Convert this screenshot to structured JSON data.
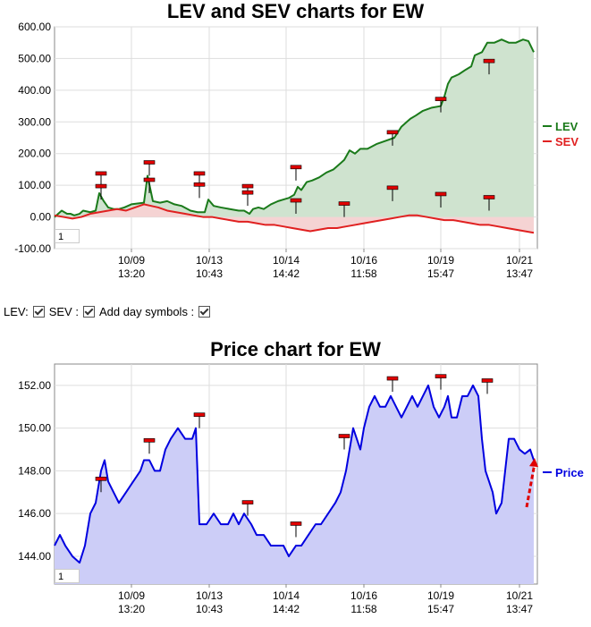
{
  "chart_data": [
    {
      "type": "line",
      "title": "LEV and SEV charts for EW",
      "x_ticks": [
        {
          "date": "10/09",
          "time": "13:20"
        },
        {
          "date": "10/13",
          "time": "10:43"
        },
        {
          "date": "10/14",
          "time": "14:42"
        },
        {
          "date": "10/16",
          "time": "11:58"
        },
        {
          "date": "10/19",
          "time": "15:47"
        },
        {
          "date": "10/21",
          "time": "13:47"
        }
      ],
      "y_ticks": [
        "600.00",
        "500.00",
        "400.00",
        "300.00",
        "200.00",
        "100.00",
        "0.00",
        "-100.00"
      ],
      "ylim": [
        -100,
        600
      ],
      "grid": true,
      "legend_position": "right",
      "series": [
        {
          "name": "LEV",
          "color": "#1a7a1a",
          "fill": "#cfe3cf",
          "points": [
            [
              0,
              0
            ],
            [
              8,
              20
            ],
            [
              14,
              10
            ],
            [
              18,
              10
            ],
            [
              22,
              5
            ],
            [
              28,
              10
            ],
            [
              32,
              20
            ],
            [
              40,
              15
            ],
            [
              46,
              20
            ],
            [
              50,
              75
            ],
            [
              55,
              50
            ],
            [
              60,
              30
            ],
            [
              66,
              25
            ],
            [
              72,
              25
            ],
            [
              78,
              30
            ],
            [
              86,
              40
            ],
            [
              100,
              45
            ],
            [
              104,
              130
            ],
            [
              110,
              50
            ],
            [
              118,
              45
            ],
            [
              126,
              50
            ],
            [
              134,
              40
            ],
            [
              142,
              35
            ],
            [
              152,
              20
            ],
            [
              160,
              15
            ],
            [
              168,
              15
            ],
            [
              172,
              55
            ],
            [
              178,
              35
            ],
            [
              186,
              30
            ],
            [
              196,
              25
            ],
            [
              206,
              20
            ],
            [
              212,
              20
            ],
            [
              218,
              10
            ],
            [
              222,
              25
            ],
            [
              228,
              30
            ],
            [
              234,
              25
            ],
            [
              242,
              40
            ],
            [
              250,
              50
            ],
            [
              256,
              55
            ],
            [
              262,
              60
            ],
            [
              268,
              70
            ],
            [
              272,
              95
            ],
            [
              276,
              85
            ],
            [
              282,
              110
            ],
            [
              288,
              115
            ],
            [
              296,
              125
            ],
            [
              304,
              140
            ],
            [
              312,
              150
            ],
            [
              320,
              170
            ],
            [
              324,
              180
            ],
            [
              330,
              210
            ],
            [
              336,
              200
            ],
            [
              342,
              215
            ],
            [
              350,
              215
            ],
            [
              360,
              230
            ],
            [
              370,
              240
            ],
            [
              380,
              250
            ],
            [
              388,
              285
            ],
            [
              394,
              300
            ],
            [
              398,
              310
            ],
            [
              404,
              320
            ],
            [
              412,
              335
            ],
            [
              422,
              345
            ],
            [
              432,
              350
            ],
            [
              436,
              380
            ],
            [
              440,
              420
            ],
            [
              444,
              440
            ],
            [
              452,
              450
            ],
            [
              460,
              465
            ],
            [
              466,
              475
            ],
            [
              470,
              510
            ],
            [
              478,
              520
            ],
            [
              484,
              550
            ],
            [
              492,
              550
            ],
            [
              500,
              560
            ],
            [
              508,
              550
            ],
            [
              516,
              550
            ],
            [
              524,
              560
            ],
            [
              530,
              555
            ],
            [
              536,
              520
            ]
          ]
        },
        {
          "name": "SEV",
          "color": "#e02020",
          "fill": "#f5d3d3",
          "points": [
            [
              0,
              5
            ],
            [
              10,
              0
            ],
            [
              20,
              -5
            ],
            [
              30,
              0
            ],
            [
              40,
              10
            ],
            [
              50,
              15
            ],
            [
              60,
              20
            ],
            [
              70,
              25
            ],
            [
              80,
              20
            ],
            [
              90,
              30
            ],
            [
              100,
              40
            ],
            [
              108,
              35
            ],
            [
              116,
              30
            ],
            [
              126,
              20
            ],
            [
              136,
              15
            ],
            [
              146,
              10
            ],
            [
              156,
              5
            ],
            [
              166,
              0
            ],
            [
              176,
              0
            ],
            [
              186,
              -5
            ],
            [
              196,
              -10
            ],
            [
              206,
              -15
            ],
            [
              216,
              -15
            ],
            [
              226,
              -20
            ],
            [
              236,
              -25
            ],
            [
              246,
              -25
            ],
            [
              256,
              -30
            ],
            [
              266,
              -35
            ],
            [
              276,
              -40
            ],
            [
              286,
              -45
            ],
            [
              296,
              -40
            ],
            [
              306,
              -35
            ],
            [
              316,
              -35
            ],
            [
              326,
              -30
            ],
            [
              336,
              -25
            ],
            [
              346,
              -20
            ],
            [
              356,
              -15
            ],
            [
              366,
              -10
            ],
            [
              376,
              -5
            ],
            [
              386,
              0
            ],
            [
              396,
              5
            ],
            [
              406,
              5
            ],
            [
              416,
              0
            ],
            [
              426,
              -5
            ],
            [
              436,
              -10
            ],
            [
              446,
              -10
            ],
            [
              456,
              -15
            ],
            [
              466,
              -20
            ],
            [
              476,
              -25
            ],
            [
              486,
              -25
            ],
            [
              496,
              -30
            ],
            [
              506,
              -35
            ],
            [
              516,
              -40
            ],
            [
              526,
              -45
            ],
            [
              536,
              -50
            ]
          ]
        }
      ]
    },
    {
      "type": "line",
      "title": "Price chart for EW",
      "x_ticks": [
        {
          "date": "10/09",
          "time": "13:20"
        },
        {
          "date": "10/13",
          "time": "10:43"
        },
        {
          "date": "10/14",
          "time": "14:42"
        },
        {
          "date": "10/16",
          "time": "11:58"
        },
        {
          "date": "10/19",
          "time": "15:47"
        },
        {
          "date": "10/21",
          "time": "13:47"
        }
      ],
      "y_ticks": [
        "152.00",
        "150.00",
        "148.00",
        "146.00",
        "144.00"
      ],
      "ylim": [
        142.7,
        153.0
      ],
      "grid": true,
      "legend_position": "right",
      "series": [
        {
          "name": "Price",
          "color": "#0000e0",
          "fill": "#cccdf7",
          "points": [
            [
              0,
              144.5
            ],
            [
              6,
              145.0
            ],
            [
              12,
              144.5
            ],
            [
              20,
              144.0
            ],
            [
              28,
              143.7
            ],
            [
              34,
              144.5
            ],
            [
              40,
              146.0
            ],
            [
              46,
              146.5
            ],
            [
              52,
              148.0
            ],
            [
              56,
              148.5
            ],
            [
              60,
              147.5
            ],
            [
              66,
              147.0
            ],
            [
              72,
              146.5
            ],
            [
              80,
              147.0
            ],
            [
              88,
              147.5
            ],
            [
              96,
              148.0
            ],
            [
              100,
              148.5
            ],
            [
              106,
              148.5
            ],
            [
              112,
              148.0
            ],
            [
              118,
              148.0
            ],
            [
              124,
              149.0
            ],
            [
              130,
              149.5
            ],
            [
              138,
              150.0
            ],
            [
              146,
              149.5
            ],
            [
              154,
              149.5
            ],
            [
              158,
              150.0
            ],
            [
              162,
              145.5
            ],
            [
              170,
              145.5
            ],
            [
              178,
              146.0
            ],
            [
              186,
              145.5
            ],
            [
              194,
              145.5
            ],
            [
              200,
              146.0
            ],
            [
              206,
              145.5
            ],
            [
              212,
              146.0
            ],
            [
              220,
              145.5
            ],
            [
              226,
              145.0
            ],
            [
              234,
              145.0
            ],
            [
              242,
              144.5
            ],
            [
              250,
              144.5
            ],
            [
              256,
              144.5
            ],
            [
              262,
              144.0
            ],
            [
              270,
              144.5
            ],
            [
              276,
              144.5
            ],
            [
              284,
              145.0
            ],
            [
              292,
              145.5
            ],
            [
              298,
              145.5
            ],
            [
              306,
              146.0
            ],
            [
              314,
              146.5
            ],
            [
              320,
              147.0
            ],
            [
              326,
              148.0
            ],
            [
              330,
              149.0
            ],
            [
              334,
              150.0
            ],
            [
              338,
              149.5
            ],
            [
              342,
              149.0
            ],
            [
              346,
              150.0
            ],
            [
              352,
              151.0
            ],
            [
              358,
              151.5
            ],
            [
              364,
              151.0
            ],
            [
              370,
              151.0
            ],
            [
              376,
              151.5
            ],
            [
              382,
              151.0
            ],
            [
              388,
              150.5
            ],
            [
              394,
              151.0
            ],
            [
              400,
              151.5
            ],
            [
              406,
              151.0
            ],
            [
              412,
              151.5
            ],
            [
              418,
              152.0
            ],
            [
              424,
              151.0
            ],
            [
              430,
              150.5
            ],
            [
              436,
              151.0
            ],
            [
              440,
              151.5
            ],
            [
              444,
              150.5
            ],
            [
              450,
              150.5
            ],
            [
              456,
              151.5
            ],
            [
              462,
              151.5
            ],
            [
              468,
              152.0
            ],
            [
              474,
              151.5
            ],
            [
              478,
              149.5
            ],
            [
              482,
              148.0
            ],
            [
              486,
              147.5
            ],
            [
              490,
              147.0
            ],
            [
              494,
              146.0
            ],
            [
              500,
              146.5
            ],
            [
              504,
              148.0
            ],
            [
              508,
              149.5
            ],
            [
              514,
              149.5
            ],
            [
              520,
              149.0
            ],
            [
              526,
              148.8
            ],
            [
              532,
              149.0
            ],
            [
              536,
              148.5
            ]
          ]
        }
      ]
    }
  ],
  "zoom_boxes": [
    "1",
    "1"
  ],
  "controls": {
    "lev_label": "LEV:",
    "sev_label": "SEV :",
    "day_label": "Add day symbols :"
  }
}
